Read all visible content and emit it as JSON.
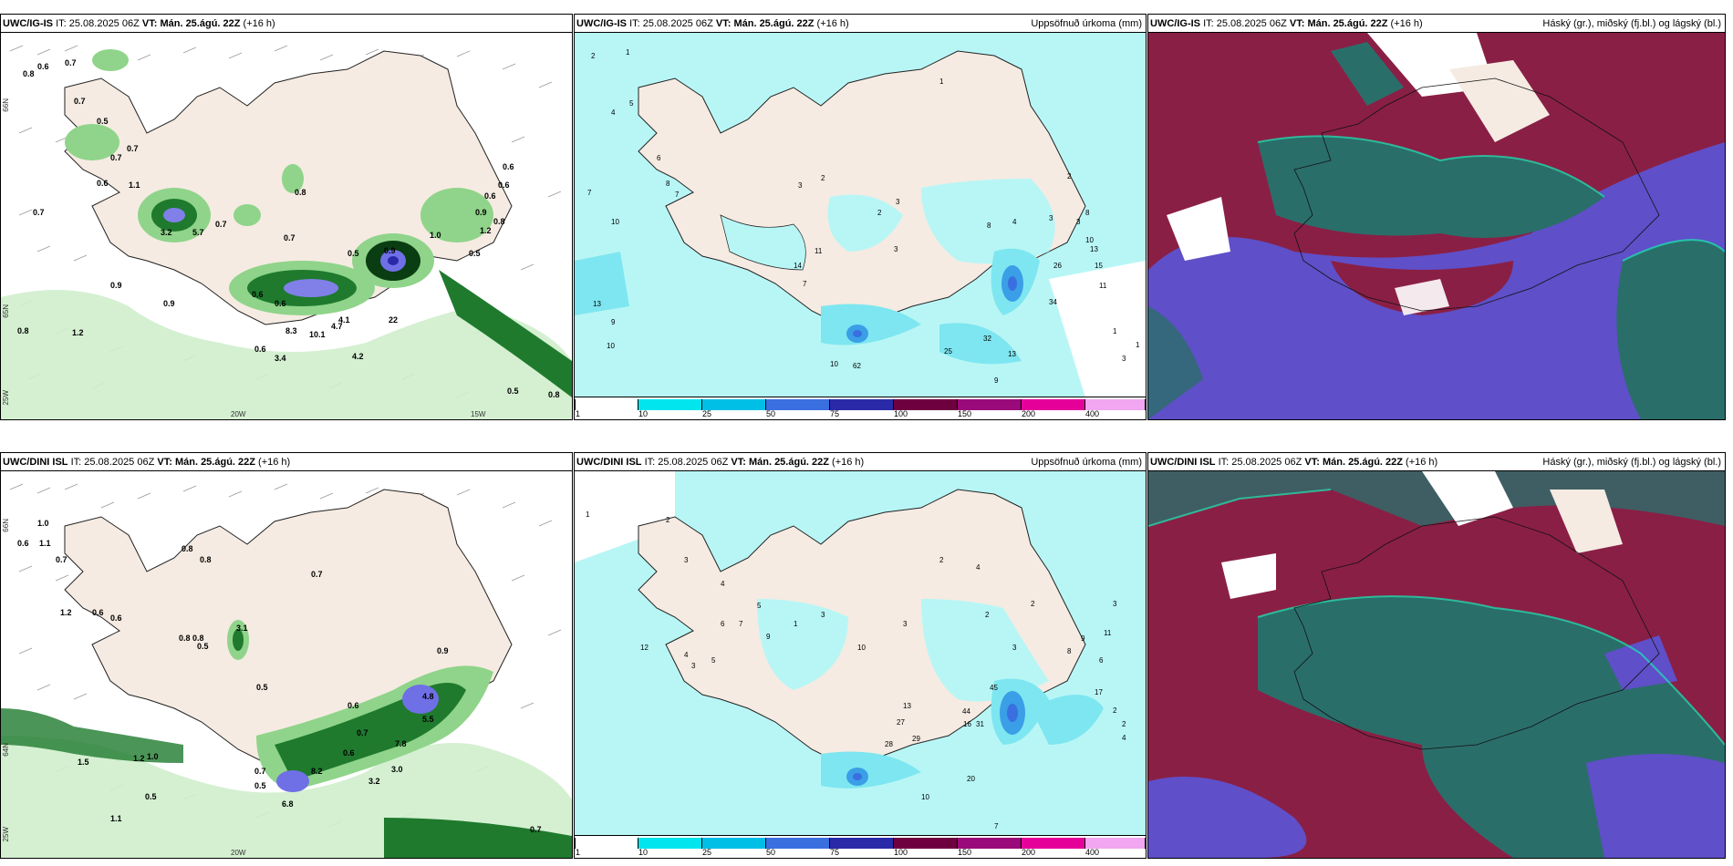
{
  "panels": [
    {
      "model": "UWC/IG-IS",
      "it_label": "IT:",
      "it": "25.08.2025 06Z",
      "vt_label": "VT:",
      "vt": "Mán. 25.ágú. 22Z",
      "lead": "(+16 h)",
      "right_title": ""
    },
    {
      "model": "UWC/IG-IS",
      "it_label": "IT:",
      "it": "25.08.2025 06Z",
      "vt_label": "VT:",
      "vt": "Mán. 25.ágú. 22Z",
      "lead": "(+16 h)",
      "right_title": "Uppsöfnuð úrkoma (mm)"
    },
    {
      "model": "UWC/IG-IS",
      "it_label": "IT:",
      "it": "25.08.2025 06Z",
      "vt_label": "VT:",
      "vt": "Mán. 25.ágú. 22Z",
      "lead": "(+16 h)",
      "right_title": "Háský (gr.), miðský (fj.bl.) og lágský (bl.)"
    },
    {
      "model": "UWC/DINI ISL",
      "it_label": "IT:",
      "it": "25.08.2025 06Z",
      "vt_label": "VT:",
      "vt": "Mán. 25.ágú. 22Z",
      "lead": "(+16 h)",
      "right_title": ""
    },
    {
      "model": "UWC/DINI ISL",
      "it_label": "IT:",
      "it": "25.08.2025 06Z",
      "vt_label": "VT:",
      "vt": "Mán. 25.ágú. 22Z",
      "lead": "(+16 h)",
      "right_title": "Uppsöfnuð úrkoma (mm)"
    },
    {
      "model": "UWC/DINI ISL",
      "it_label": "IT:",
      "it": "25.08.2025 06Z",
      "vt_label": "VT:",
      "vt": "Mán. 25.ágú. 22Z",
      "lead": "(+16 h)",
      "right_title": "Háský (gr.), miðský (fj.bl.) og lágský (bl.)"
    }
  ],
  "grid_labels": {
    "lon_20w": "20W",
    "lon_15w": "15W",
    "lon_25w": "25W",
    "lat_66n": "66N",
    "lat_64n": "64N",
    "lat_65n": "65N"
  },
  "colorbar": {
    "labels": [
      "1",
      "10",
      "25",
      "50",
      "75",
      "100",
      "150",
      "200",
      "400"
    ],
    "colors": [
      "#ffffff",
      "#00e5ee",
      "#00bfe6",
      "#3a6fe0",
      "#2a2aa8",
      "#6e0040",
      "#9a0a7a",
      "#e6009a",
      "#f0a6f0"
    ]
  },
  "precip_top_labels": [
    "0.6",
    "0.7",
    "0.8",
    "0.7",
    "0.5",
    "0.6",
    "0.7",
    "0.7",
    "0.6",
    "0.5",
    "1.1",
    "0.7",
    "3.2",
    "5.7",
    "0.7",
    "0.8",
    "0.7",
    "0.5",
    "0.9",
    "1.0",
    "0.9",
    "0.8",
    "0.6",
    "0.6",
    "0.6",
    "0.6",
    "0.5",
    "1.2",
    "4.1",
    "22",
    "0.6",
    "8.3",
    "10.1",
    "4.7",
    "4.2",
    "3.4",
    "0.8",
    "1.2",
    "0.9",
    "0.5",
    "0.8"
  ],
  "precip_bot_labels": [
    "1.0",
    "0.6",
    "1.1",
    "0.7",
    "0.8",
    "0.8",
    "0.7",
    "1.2",
    "0.6",
    "0.6",
    "0.8",
    "0.8",
    "3.1",
    "0.5",
    "0.5",
    "0.9",
    "0.6",
    "0.7",
    "4.8",
    "5.5",
    "7.8",
    "0.6",
    "3.0",
    "3.2",
    "8.2",
    "6.8",
    "0.7",
    "0.5",
    "1.5",
    "1.2",
    "1.0",
    "0.5",
    "1.1",
    "0.7"
  ],
  "accum_top_labels": [
    "2",
    "1",
    "4",
    "5",
    "7",
    "8",
    "6",
    "7",
    "10",
    "13",
    "9",
    "10",
    "14",
    "11",
    "7",
    "3",
    "2",
    "1",
    "2",
    "3",
    "3",
    "8",
    "4",
    "3",
    "2",
    "3",
    "8",
    "10",
    "26",
    "34",
    "15",
    "11",
    "13",
    "25",
    "32",
    "13",
    "62",
    "10",
    "9",
    "7",
    "1",
    "3",
    "1"
  ],
  "accum_bot_labels": [
    "1",
    "2",
    "3",
    "4",
    "5",
    "7",
    "6",
    "12",
    "4",
    "3",
    "5",
    "1",
    "3",
    "9",
    "10",
    "3",
    "2",
    "4",
    "2",
    "3",
    "2",
    "13",
    "27",
    "28",
    "29",
    "44",
    "16",
    "31",
    "45",
    "20",
    "10",
    "17",
    "6",
    "2",
    "8",
    "9",
    "11",
    "3",
    "2",
    "4",
    "7"
  ],
  "colors": {
    "land": "#f5ebe2",
    "green_light": "#cfeecc",
    "green_mid": "#8fd48a",
    "green_dark": "#1f7a2e",
    "green_vdark": "#0a3d12",
    "blue_mark": "#6f6fe6",
    "cyan": "#b8f6f6",
    "cyan_mid": "#7ee6f0",
    "cloud_maroon": "#8a1f45",
    "cloud_purple": "#5f4fc8",
    "cloud_teal": "#2a6e6a"
  }
}
